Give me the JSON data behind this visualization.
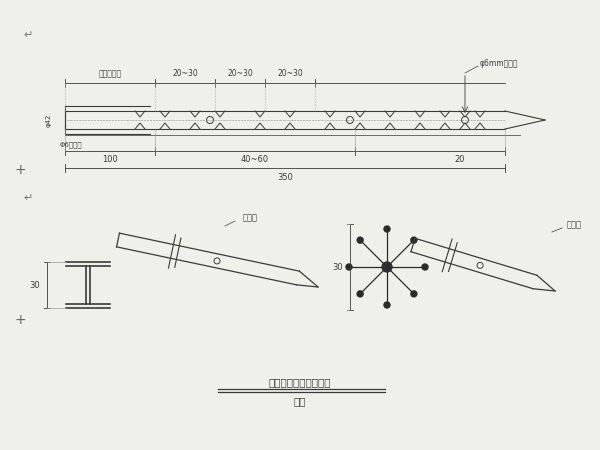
{
  "bg_color": "#f0f0eb",
  "line_color": "#3a3a3a",
  "title": "小号管架设位置示意图",
  "subtitle": "示意",
  "label_pre留": "预留止浆段",
  "label_2030a": "20~30",
  "label_2030b": "20~30",
  "label_2030c": "20~30",
  "label_hole": "φ6mm注浆孔",
  "label_phi42": "φ42",
  "label_reinf": "Φ6加劲箋",
  "label_100": "100",
  "label_4060": "40~60",
  "label_20": "20",
  "label_350": "350",
  "label_30_left": "30",
  "label_30_right": "30",
  "label_ganghuaguan": "钉花算",
  "label_ganghuaguan2": "钉花算"
}
